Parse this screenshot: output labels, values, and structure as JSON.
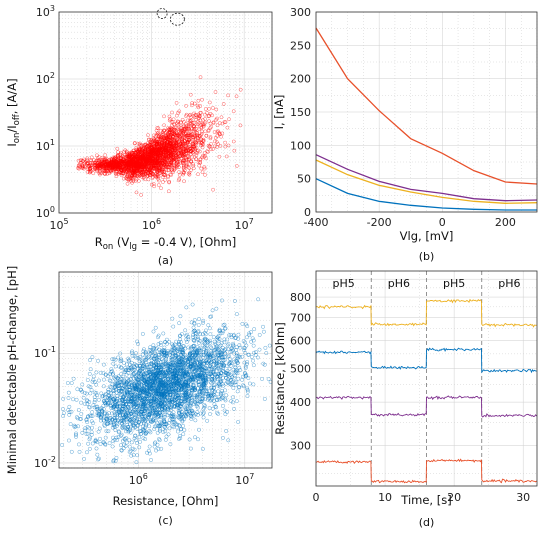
{
  "chart_data": [
    {
      "id": "a",
      "type": "scatter",
      "caption": "(a)",
      "xlabel_main": "R",
      "xlabel_sub": "on",
      "xlabel_paren_open": " (V",
      "xlabel_paren_sub": "lg",
      "xlabel_tail": " = -0.4 V), [Ohm]",
      "ylabel_parts": [
        "I",
        "on",
        "/I",
        "off",
        ", [A/A]"
      ],
      "xscale": "log",
      "yscale": "log",
      "xlim": [
        100000,
        20000000
      ],
      "ylim": [
        1,
        1000
      ],
      "x_ticks": [
        {
          "base": "10",
          "exp": "5"
        },
        {
          "base": "10",
          "exp": "6"
        },
        {
          "base": "10",
          "exp": "7"
        }
      ],
      "y_ticks": [
        {
          "base": "10",
          "exp": "0"
        },
        {
          "base": "10",
          "exp": "1"
        },
        {
          "base": "10",
          "exp": "2"
        },
        {
          "base": "10",
          "exp": "3"
        }
      ],
      "color": "#ff0000",
      "grid": true,
      "outliers": [
        {
          "x": 1300000,
          "y": 950
        },
        {
          "x": 1900000,
          "y": 780
        }
      ]
    },
    {
      "id": "b",
      "type": "line",
      "caption": "(b)",
      "xlabel": "Vlg, [mV]",
      "ylabel": "I, [nA]",
      "xlim": [
        -400,
        300
      ],
      "ylim": [
        0,
        300
      ],
      "x_ticks": [
        "-400",
        "-200",
        "0",
        "200"
      ],
      "y_ticks": [
        "0",
        "50",
        "100",
        "150",
        "200",
        "250",
        "300"
      ],
      "grid": true,
      "x": [
        -400,
        -300,
        -200,
        -100,
        0,
        100,
        200,
        300
      ],
      "series": [
        {
          "color": "#e8512b",
          "values": [
            276,
            200,
            152,
            110,
            88,
            62,
            45,
            42
          ]
        },
        {
          "color": "#7e2f8e",
          "values": [
            86,
            64,
            46,
            34,
            28,
            20,
            17,
            18
          ]
        },
        {
          "color": "#edb120",
          "values": [
            78,
            56,
            40,
            30,
            22,
            16,
            13,
            14
          ]
        },
        {
          "color": "#0072bd",
          "values": [
            50,
            28,
            16,
            10,
            6,
            4,
            3,
            3
          ]
        }
      ]
    },
    {
      "id": "c",
      "type": "scatter",
      "caption": "(c)",
      "xlabel": "Resistance, [Ohm]",
      "ylabel": "Minimal detectable pH-change, [pH]",
      "xscale": "log",
      "yscale": "log",
      "xlim": [
        180000,
        18000000
      ],
      "ylim": [
        0.009,
        0.55
      ],
      "x_ticks": [
        {
          "base": "10",
          "exp": "6"
        },
        {
          "base": "10",
          "exp": "7"
        }
      ],
      "y_ticks": [
        {
          "base": "10",
          "exp": "-2"
        },
        {
          "base": "10",
          "exp": "-1"
        }
      ],
      "color": "#0072bd",
      "grid": true
    },
    {
      "id": "d",
      "type": "line",
      "caption": "(d)",
      "xlabel": "Time, [s]",
      "ylabel": "Resistance, [kOhm]",
      "yscale": "log",
      "xlim": [
        0,
        32
      ],
      "ylim": [
        230,
        950
      ],
      "x_ticks": [
        "0",
        "10",
        "20",
        "30"
      ],
      "y_ticks": [
        {
          "label": "300",
          "value": 300
        },
        {
          "label": "400",
          "value": 400
        },
        {
          "label": "500",
          "value": 500
        },
        {
          "label": "600",
          "value": 600
        },
        {
          "label": "700",
          "value": 700
        },
        {
          "label": "800",
          "value": 800
        }
      ],
      "grid": true,
      "segments": [
        {
          "label": "pH5",
          "start": 0,
          "end": 8
        },
        {
          "label": "pH6",
          "start": 8,
          "end": 16
        },
        {
          "label": "pH5",
          "start": 16,
          "end": 24
        },
        {
          "label": "pH6",
          "start": 24,
          "end": 32
        }
      ],
      "series": [
        {
          "color": "#edb120",
          "levels": [
            750,
            668,
            780,
            666
          ]
        },
        {
          "color": "#0072bd",
          "levels": [
            556,
            502,
            566,
            492
          ]
        },
        {
          "color": "#7e2f8e",
          "levels": [
            412,
            368,
            412,
            366
          ]
        },
        {
          "color": "#e8512b",
          "levels": [
            270,
            237,
            272,
            238
          ]
        }
      ]
    }
  ]
}
